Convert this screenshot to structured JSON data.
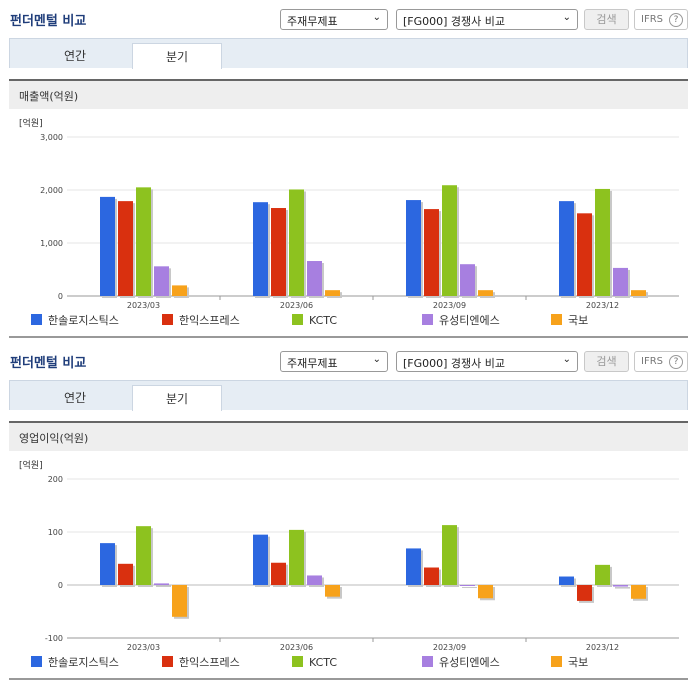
{
  "panels": [
    {
      "title": "펀더멘털 비교",
      "select_type": "주재무제표",
      "select_compare": "[FG000] 경쟁사 비교",
      "search_label": "검색",
      "ifrs_label": "IFRS",
      "tabs": [
        "연간",
        "분기"
      ],
      "active_tab": "분기",
      "section_title": "매출액(억원)"
    },
    {
      "title": "펀더멘털 비교",
      "select_type": "주재무제표",
      "select_compare": "[FG000] 경쟁사 비교",
      "search_label": "검색",
      "ifrs_label": "IFRS",
      "tabs": [
        "연간",
        "분기"
      ],
      "active_tab": "분기",
      "section_title": "영업이익(억원)"
    }
  ],
  "chart_data": [
    {
      "type": "bar",
      "title": "매출액(억원)",
      "unit_label": "[억원]",
      "categories": [
        "2023/03",
        "2023/06",
        "2023/09",
        "2023/12"
      ],
      "ylim": [
        0,
        3000
      ],
      "yticks": [
        0,
        1000,
        2000,
        3000
      ],
      "ytick_labels": [
        "0",
        "1,000",
        "2,000",
        "3,000"
      ],
      "legend_position": "bottom",
      "series": [
        {
          "name": "한솔로지스틱스",
          "color": "#2c67e0",
          "values": [
            1870,
            1770,
            1810,
            1790
          ]
        },
        {
          "name": "한익스프레스",
          "color": "#d9300f",
          "values": [
            1790,
            1660,
            1640,
            1560
          ]
        },
        {
          "name": "KCTC",
          "color": "#8dc21f",
          "values": [
            2050,
            2010,
            2090,
            2020
          ]
        },
        {
          "name": "유성티엔에스",
          "color": "#a77fe0",
          "values": [
            560,
            660,
            600,
            530
          ]
        },
        {
          "name": "국보",
          "color": "#f7a21b",
          "values": [
            200,
            110,
            110,
            110
          ]
        }
      ]
    },
    {
      "type": "bar",
      "title": "영업이익(억원)",
      "unit_label": "[억원]",
      "categories": [
        "2023/03",
        "2023/06",
        "2023/09",
        "2023/12"
      ],
      "ylim": [
        -100,
        200
      ],
      "yticks": [
        -100,
        0,
        100,
        200
      ],
      "ytick_labels": [
        "-100",
        "0",
        "100",
        "200"
      ],
      "legend_position": "bottom",
      "series": [
        {
          "name": "한솔로지스틱스",
          "color": "#2c67e0",
          "values": [
            79,
            95,
            69,
            16
          ]
        },
        {
          "name": "한익스프레스",
          "color": "#d9300f",
          "values": [
            40,
            42,
            33,
            -30
          ]
        },
        {
          "name": "KCTC",
          "color": "#8dc21f",
          "values": [
            111,
            104,
            113,
            38
          ]
        },
        {
          "name": "유성티엔에스",
          "color": "#a77fe0",
          "values": [
            3,
            18,
            0,
            -3
          ]
        },
        {
          "name": "국보",
          "color": "#f7a21b",
          "values": [
            -60,
            -22,
            -25,
            -26
          ]
        }
      ]
    }
  ]
}
